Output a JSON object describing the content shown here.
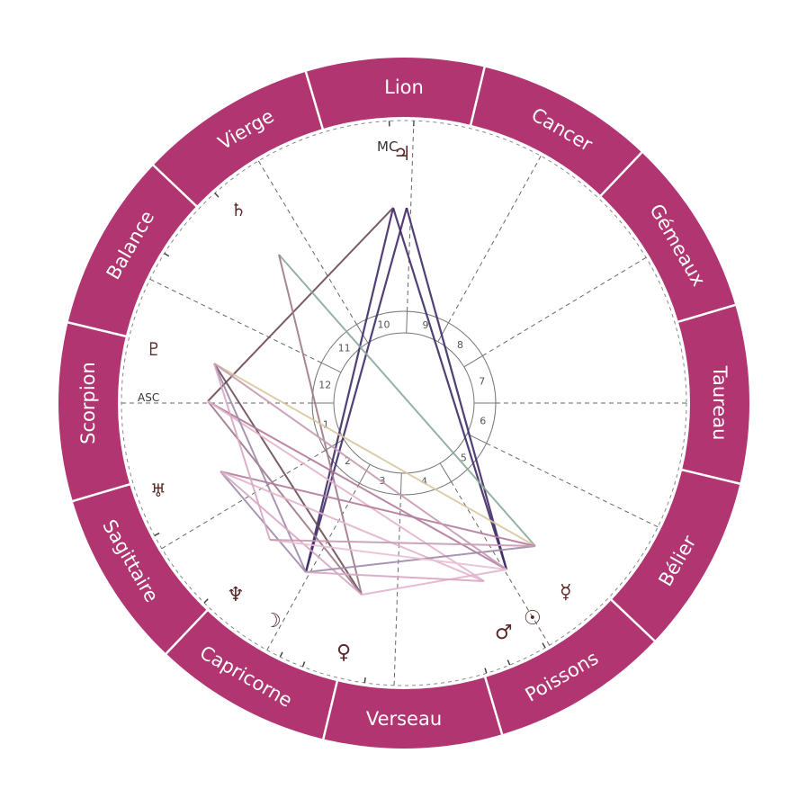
{
  "colors": {
    "ring": "#b03570",
    "divider": "#ffffff",
    "cusp": "#666666",
    "glyph": "#5a2a2a"
  },
  "signs": [
    {
      "name": "Lion",
      "angle": 90
    },
    {
      "name": "Cancer",
      "angle": 60
    },
    {
      "name": "Gémeaux",
      "angle": 30
    },
    {
      "name": "Taureau",
      "angle": 0
    },
    {
      "name": "Bélier",
      "angle": -30
    },
    {
      "name": "Poissons",
      "angle": -60
    },
    {
      "name": "Verseau",
      "angle": -90
    },
    {
      "name": "Capricorne",
      "angle": -120
    },
    {
      "name": "Sagittaire",
      "angle": -150
    },
    {
      "name": "Scorpion",
      "angle": 180
    },
    {
      "name": "Balance",
      "angle": 150
    },
    {
      "name": "Vierge",
      "angle": 120
    }
  ],
  "houses": [
    "1",
    "2",
    "3",
    "4",
    "5",
    "6",
    "7",
    "8",
    "9",
    "10",
    "11",
    "12"
  ],
  "axes": {
    "asc": "ASC",
    "mc": "MC"
  },
  "planets": [
    {
      "name": "jupiter",
      "glyph": "♃"
    },
    {
      "name": "saturn",
      "glyph": "♄"
    },
    {
      "name": "pluto",
      "glyph": "♇"
    },
    {
      "name": "uranus",
      "glyph": "♅"
    },
    {
      "name": "neptune",
      "glyph": "♆"
    },
    {
      "name": "moon",
      "glyph": "☽"
    },
    {
      "name": "venus",
      "glyph": "♀"
    },
    {
      "name": "mars",
      "glyph": "♂"
    },
    {
      "name": "sun",
      "glyph": "☉"
    },
    {
      "name": "mercury",
      "glyph": "☿"
    }
  ]
}
